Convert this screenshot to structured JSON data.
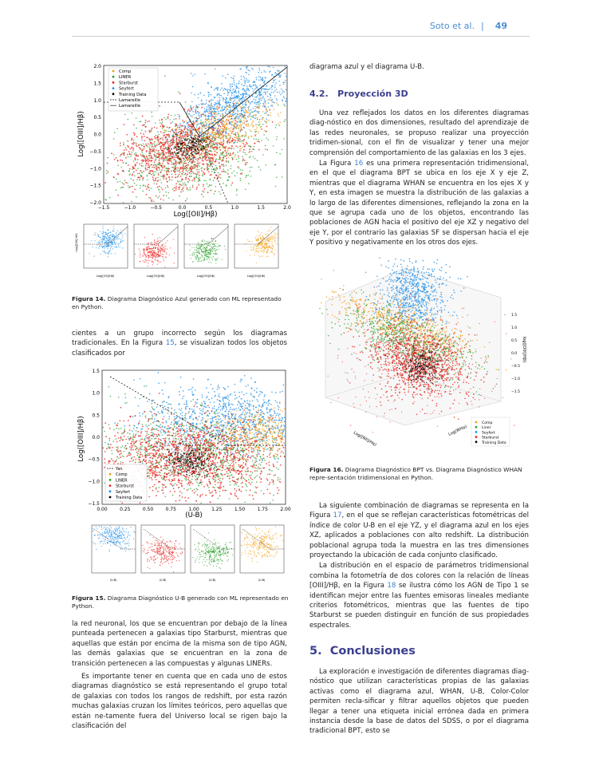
{
  "header": {
    "author": "Soto et al.",
    "separator": "|",
    "page": "49"
  },
  "fig14": {
    "ylabel": "Log([OIII]/Hβ)",
    "xlabel": "Log([OII]/Hβ)",
    "yticks": [
      "2.0",
      "1.5",
      "1.0",
      "0.5",
      "0.0",
      "−0.5",
      "−1.0",
      "−1.5",
      "−2.0"
    ],
    "xticks": [
      "−1.5",
      "−1.0",
      "−0.5",
      "0.0",
      "0.5",
      "1.0",
      "1.5",
      "2.0"
    ],
    "legend": [
      "Comp",
      "LINER",
      "Starburst",
      "Seyfert",
      "Training Data",
      "Lamareille",
      "Lamareille"
    ],
    "small_xlabel": "Log([OII]/Hβ)",
    "small_ylabel": "Log([OIII]/Hβ)",
    "caption_label": "Figura 14.",
    "caption_text": " Diagrama Diagnóstico Azul generado con ML representado en Python."
  },
  "left_para1": {
    "text_a": "cientes a un grupo incorrecto según los diagramas tradicionales. En la Figura ",
    "link": "15",
    "text_b": ", se visualizan todos los objetos clasificados por"
  },
  "fig15": {
    "ylabel": "Log([OIII]/Hβ)",
    "xlabel": "(U-B)",
    "yticks": [
      "1.5",
      "1.0",
      "0.5",
      "0.0",
      "−0.5",
      "−1.0",
      "−1.5"
    ],
    "xticks": [
      "0.00",
      "0.25",
      "0.50",
      "0.75",
      "1.00",
      "1.25",
      "1.50",
      "1.75",
      "2.00"
    ],
    "legend": [
      "Yan",
      "Comp",
      "LINER",
      "Starburst",
      "Seyfert",
      "Training Data"
    ],
    "small_xlabel": "(U-B)",
    "caption_label": "Figura 15.",
    "caption_text": " Diagrama Diagnóstico U-B generado con ML representado en Python."
  },
  "left_para2": "la red neuronal, los que se encuentran por debajo de la línea punteada pertenecen a galaxias tipo Starburst, mientras que aquellas que están por encima de la misma son de tipo AGN, las demás galaxias que se encuentran en la zona de transición pertenecen a las compuestas y algunas LINERs.",
  "left_para3": "Es importante tener en cuenta que en cada uno de estos diagramas diagnóstico se está representando el grupo total de galaxias con todos los rangos de redshift, por esta razón muchas galaxias cruzan los límites teóricos, pero aquellas que están ne-tamente fuera del Universo local se rigen bajo la clasificación del",
  "right_top": "diagrama azul y el diagrama U-B.",
  "sec42": {
    "num": "4.2.",
    "title": "Proyección 3D"
  },
  "right_para1": "Una vez reflejados los datos en los diferentes diagramas diag-nóstico en dos dimensiones, resultado del aprendizaje de las redes neuronales, se propuso realizar una proyección tridimen-sional, con el fin de visualizar y tener una mejor comprensión del comportamiento de las galaxias en los 3 ejes.",
  "right_para2": {
    "text_a": "La Figura ",
    "link": "16",
    "text_b": " es una primera representación tridimensional, en el que el diagrama BPT se ubica en los eje X y eje Z, mientras que el diagrama WHAN se encuentra en los ejes X y Y, en esta imagen se muestra la distribución de las galaxias a lo largo de las diferentes dimensiones, reflejando la zona en la que se agrupa cada uno de los objetos, encontrando las poblaciones de AGN hacia el positivo del eje XZ y negativo del eje Y, por el contrario las galaxias SF se dispersan hacia el eje Y positivo y negativamente en los otros dos ejes."
  },
  "fig16": {
    "legend": [
      "Comp",
      "Liner",
      "Seyfert",
      "Starburst",
      "Training Data"
    ],
    "zlabel": "log([OIII]/Hβ)",
    "xlabel": "Log([NII]/Hα)",
    "ylabel": "Log(WHα)",
    "zticks": [
      "1.5",
      "1.0",
      "0.5",
      "0.0",
      "−0.5",
      "−1.0",
      "−1.5"
    ],
    "caption_label": "Figura 16.",
    "caption_text": " Diagrama Diagnóstico BPT vs. Diagrama Diagnóstico WHAN repre-sentación tridimensional en Python."
  },
  "right_para3": {
    "text_a": "La siguiente combinación de diagramas se representa en la Figura ",
    "link": "17",
    "text_b": ", en el que se reflejan características fotométricas del índice de color U-B en el eje YZ, y el diagrama azul en los ejes XZ, aplicados a poblaciones con alto redshift. La distribución poblacional agrupa toda la muestra en las tres dimensiones proyectando la ubicación de cada conjunto clasificado."
  },
  "right_para4": {
    "text_a": "La distribución en el espacio de parámetros tridimensional combina la fotometría de dos colores con la relación de líneas [OIII]/Hβ, en la Figura ",
    "link": "18",
    "text_b": " se ilustra cómo los AGN de Tipo 1 se identifican mejor entre las fuentes emisoras lineales mediante criterios fotométricos, mientras que las fuentes de tipo Starburst se pueden distinguir en función de sus propiedades espectrales."
  },
  "sec5": {
    "num": "5.",
    "title": "Conclusiones"
  },
  "right_para5": "La exploración e investigación de diferentes diagramas diag-nóstico que utilizan características propias de las galaxias activas como el diagrama azul, WHAN, U-B, Color-Color permiten recla-sificar y filtrar aquellos objetos que pueden llegar a tener una etiqueta inicial errónea dada en primera instancia desde la base de datos del SDSS, o por el diagrama tradicional BPT, esto se",
  "colors": {
    "comp": "#f39c12",
    "liner": "#2ca02c",
    "starburst": "#e8221b",
    "seyfert": "#1f8fe8",
    "training": "#000000",
    "accent": "#3b3f8f",
    "link": "#3a7fd0"
  }
}
